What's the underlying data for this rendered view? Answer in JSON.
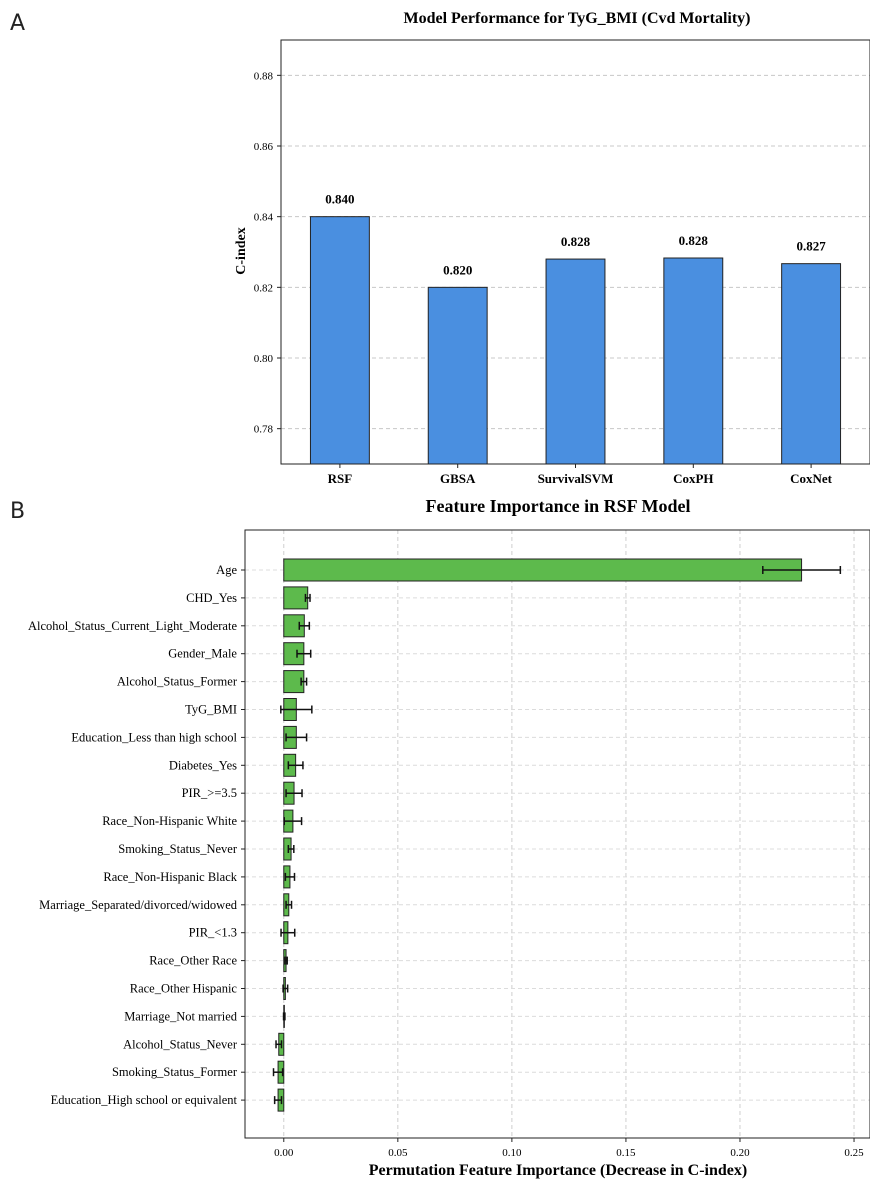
{
  "panels": [
    {
      "letter": "A"
    },
    {
      "letter": "B"
    }
  ],
  "chart_data": [
    {
      "type": "bar",
      "title": "Model Performance for TyG_BMI (Cvd Mortality)",
      "xlabel": "",
      "ylabel": "C-index",
      "categories": [
        "RSF",
        "GBSA",
        "SurvivalSVM",
        "CoxPH",
        "CoxNet"
      ],
      "values": [
        0.84,
        0.82,
        0.828,
        0.8283,
        0.8267
      ],
      "value_labels": [
        "0.840",
        "0.820",
        "0.828",
        "0.828",
        "0.827"
      ],
      "ylim": [
        0.77,
        0.89
      ],
      "yticks": [
        0.78,
        0.8,
        0.82,
        0.84,
        0.86,
        0.88
      ],
      "ytick_labels": [
        "0.78",
        "0.80",
        "0.82",
        "0.84",
        "0.86",
        "0.88"
      ],
      "grid": "y-dashed",
      "bar_color": "#4a8fe0",
      "edge_color": "#222222"
    },
    {
      "type": "bar",
      "orientation": "horizontal",
      "title": "Feature Importance in RSF Model",
      "xlabel": "Permutation Feature Importance (Decrease in C-index)",
      "ylabel": "",
      "categories": [
        "Age",
        "CHD_Yes",
        "Alcohol_Status_Current_Light_Moderate",
        "Gender_Male",
        "Alcohol_Status_Former",
        "TyG_BMI",
        "Education_Less than high school",
        "Diabetes_Yes",
        "PIR_>=3.5",
        "Race_Non-Hispanic White",
        "Smoking_Status_Never",
        "Race_Non-Hispanic Black",
        "Marriage_Separated/divorced/widowed",
        "PIR_<1.3",
        "Race_Other Race",
        "Race_Other Hispanic",
        "Marriage_Not married",
        "Alcohol_Status_Never",
        "Smoking_Status_Former",
        "Education_High school or equivalent"
      ],
      "values": [
        0.227,
        0.0105,
        0.009,
        0.0088,
        0.0088,
        0.0055,
        0.0055,
        0.0052,
        0.0045,
        0.004,
        0.0032,
        0.0027,
        0.0022,
        0.0018,
        0.001,
        0.0007,
        0.0002,
        -0.0022,
        -0.0025,
        -0.0025
      ],
      "errors": [
        0.017,
        0.001,
        0.0022,
        0.003,
        0.0012,
        0.0068,
        0.0045,
        0.0032,
        0.0035,
        0.0038,
        0.0012,
        0.002,
        0.0012,
        0.003,
        0.0005,
        0.001,
        0.0003,
        0.0012,
        0.002,
        0.0015
      ],
      "xlim": [
        -0.017,
        0.257
      ],
      "xticks": [
        0.0,
        0.05,
        0.1,
        0.15,
        0.2,
        0.25
      ],
      "xtick_labels": [
        "0.00",
        "0.05",
        "0.10",
        "0.15",
        "0.20",
        "0.25"
      ],
      "grid": "both-dashed",
      "bar_color": "#5dba4c",
      "edge_color": "#222222"
    }
  ]
}
